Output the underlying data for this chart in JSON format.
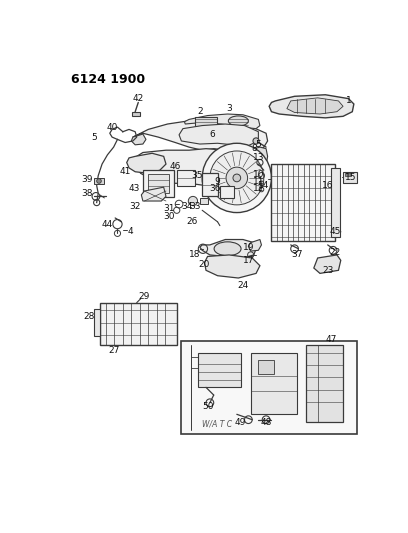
{
  "title": "6124 1900",
  "bg_color": "#ffffff",
  "fig_width": 4.08,
  "fig_height": 5.33,
  "dpi": 100,
  "line_color": "#3a3a3a",
  "label_fontsize": 6.5,
  "label_color": "#111111",
  "inset_label": "W/A T C"
}
